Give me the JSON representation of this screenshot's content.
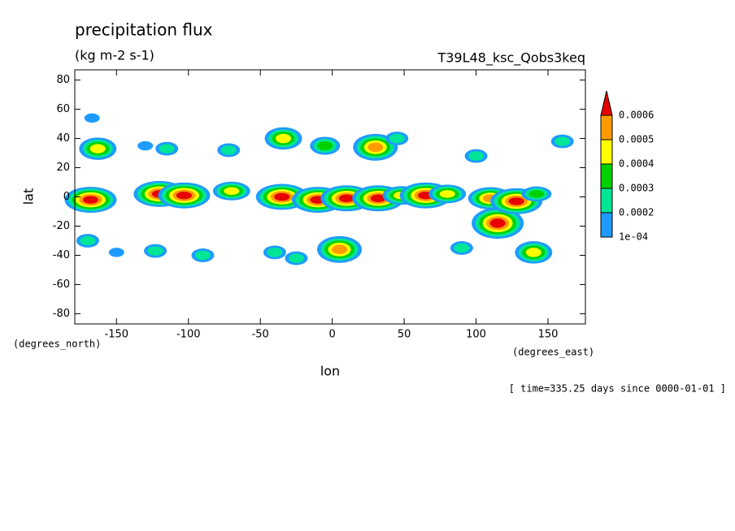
{
  "chart_data": {
    "type": "contour",
    "title": "precipitation flux",
    "subtitle": "(kg m-2 s-1)",
    "dataset": "T39L48_ksc_Qobs3keq",
    "xlabel": "lon",
    "ylabel": "lat",
    "xunit": "(degrees_east)",
    "yunit": "(degrees_north)",
    "footer": "[ time=335.25 days since 0000-01-01 ]",
    "xlim": [
      -179,
      176
    ],
    "ylim": [
      -87,
      87
    ],
    "xticks": [
      -150,
      -100,
      -50,
      0,
      50,
      100,
      150
    ],
    "yticks": [
      -80,
      -60,
      -40,
      -20,
      0,
      20,
      40,
      60,
      80
    ],
    "levels": [
      {
        "value": 0.0001,
        "label": "1e-04"
      },
      0.0002,
      0.0003,
      0.0004,
      0.0005,
      0.0006
    ],
    "colors": [
      "#1e9bff",
      "#00e696",
      "#00d200",
      "#ffff00",
      "#ff9b00",
      "#e60000"
    ],
    "x": [
      -168,
      -163,
      -167,
      -120,
      -103,
      -70,
      -35,
      -10,
      10,
      32,
      48,
      65,
      80,
      115,
      110,
      128,
      142,
      30,
      -34,
      -5,
      45,
      -115,
      -130,
      5,
      140,
      -40,
      90,
      -90,
      160,
      -170,
      100,
      -72,
      -150,
      -25,
      -123
    ],
    "y": [
      -2,
      33,
      54,
      2,
      1,
      4,
      0,
      -2,
      -1,
      -1,
      1,
      1,
      2,
      -18,
      -1,
      -3,
      2,
      34,
      40,
      35,
      40,
      33,
      35,
      -36,
      -38,
      -38,
      -35,
      -40,
      38,
      -30,
      28,
      32,
      -38,
      -42,
      -37
    ],
    "values": [
      0.0006,
      0.0004,
      0.0001,
      0.0006,
      0.0006,
      0.0004,
      0.0006,
      0.0006,
      0.0006,
      0.0006,
      0.0004,
      0.0006,
      0.0004,
      0.0006,
      0.0005,
      0.0006,
      0.0003,
      0.0005,
      0.0004,
      0.0003,
      0.0002,
      0.0002,
      0.0001,
      0.0005,
      0.0004,
      0.0002,
      0.0002,
      0.0002,
      0.0002,
      0.0002,
      0.0002,
      0.0002,
      0.0001,
      0.0002,
      0.0002
    ]
  }
}
